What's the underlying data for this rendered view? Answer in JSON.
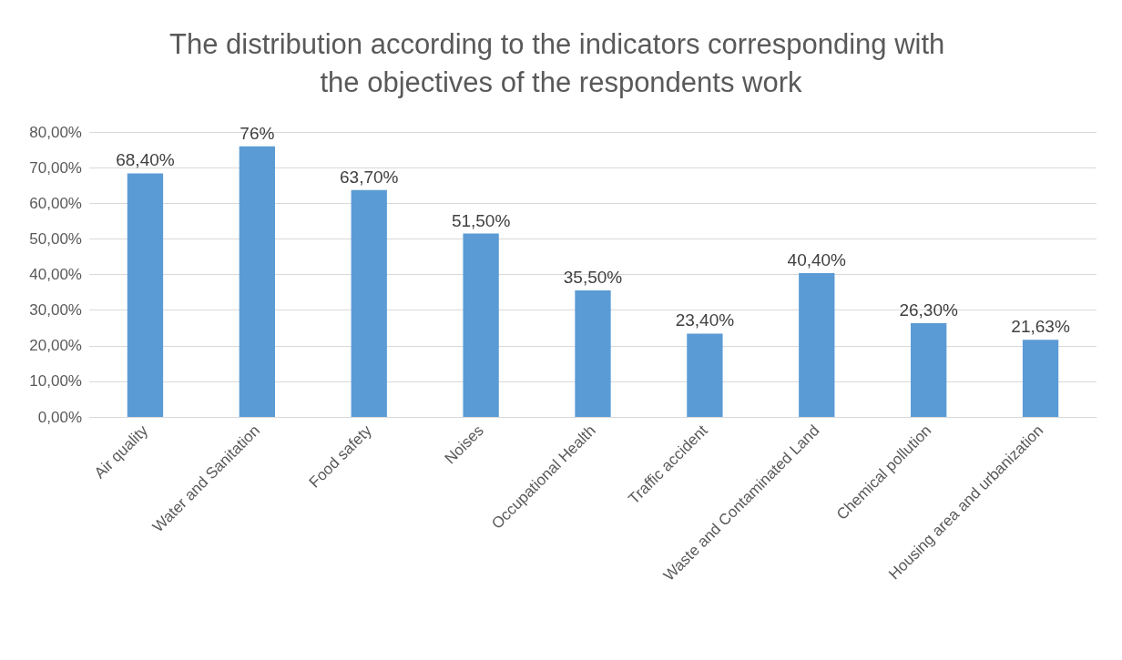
{
  "chart_data": {
    "type": "bar",
    "title": "The distribution according to the indicators corresponding with the objectives of the respondents work",
    "categories": [
      "Air quality",
      "Water and Sanitation",
      "Food safety",
      "Noises",
      "Occupational Health",
      "Traffic accident",
      "Waste and Contaminated Land",
      "Chemical pollution",
      "Housing area and urbanization"
    ],
    "values": [
      68.4,
      76,
      63.7,
      51.5,
      35.5,
      23.4,
      40.4,
      26.3,
      21.63
    ],
    "value_labels": [
      "68,40%",
      "76%",
      "63,70%",
      "51,50%",
      "35,50%",
      "23,40%",
      "40,40%",
      "26,30%",
      "21,63%"
    ],
    "color": "#5b9bd5",
    "ylim": [
      0,
      80
    ],
    "yticks": [
      {
        "value": 0,
        "label": "0,00%"
      },
      {
        "value": 10,
        "label": "10,00%"
      },
      {
        "value": 20,
        "label": "20,00%"
      },
      {
        "value": 30,
        "label": "30,00%"
      },
      {
        "value": 40,
        "label": "40,00%"
      },
      {
        "value": 50,
        "label": "50,00%"
      },
      {
        "value": 60,
        "label": "60,00%"
      },
      {
        "value": 70,
        "label": "70,00%"
      },
      {
        "value": 80,
        "label": "80,00%"
      }
    ],
    "grid": "y"
  }
}
